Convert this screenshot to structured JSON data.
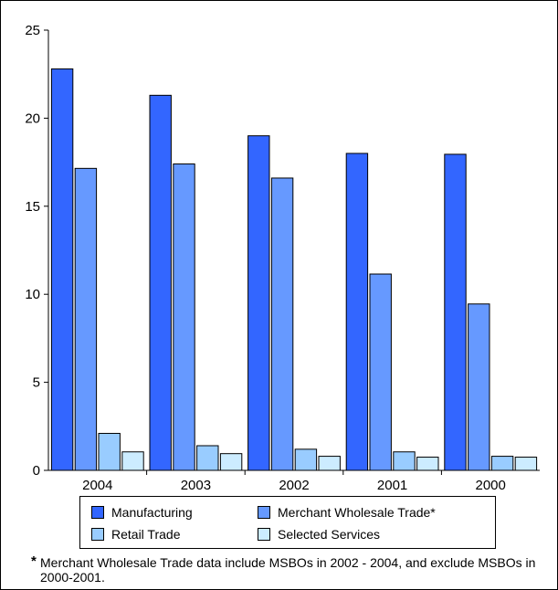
{
  "chart_data": {
    "type": "bar",
    "categories": [
      "2004",
      "2003",
      "2002",
      "2001",
      "2000"
    ],
    "series": [
      {
        "name": "Manufacturing",
        "values": [
          22.8,
          21.3,
          19.0,
          18.0,
          17.95
        ],
        "color": "#3366ff"
      },
      {
        "name": "Merchant Wholesale Trade*",
        "values": [
          17.15,
          17.4,
          16.6,
          11.15,
          9.45
        ],
        "color": "#6699ff"
      },
      {
        "name": "Retail Trade",
        "values": [
          2.1,
          1.4,
          1.2,
          1.05,
          0.8
        ],
        "color": "#99ccff"
      },
      {
        "name": "Selected Services",
        "values": [
          1.05,
          0.95,
          0.8,
          0.75,
          0.75
        ],
        "color": "#ccecff"
      }
    ],
    "ylim": [
      0,
      25
    ],
    "yticks": [
      "0",
      "5",
      "10",
      "15",
      "20",
      "25"
    ],
    "title": "",
    "xlabel": "",
    "ylabel": "",
    "grid": false,
    "legend_placement": "bottom"
  },
  "footnote": {
    "star": "*",
    "text": "Merchant Wholesale Trade data include MSBOs in 2002 - 2004, and exclude MSBOs in 2000-2001."
  }
}
